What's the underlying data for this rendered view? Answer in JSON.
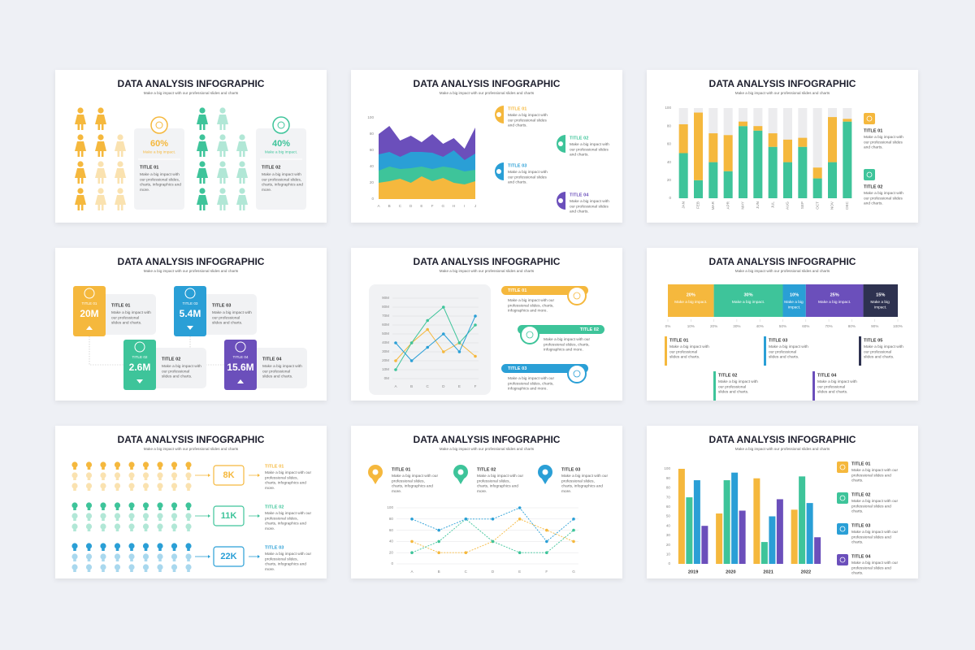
{
  "slides": [
    {
      "title": "DATA ANALYSIS INFOGRAPHIC",
      "subtitle": "Make a big impact with our professional slides and charts",
      "groups": [
        {
          "percent": "60%",
          "caption": "Make a big impact.",
          "heading": "TITLE 01",
          "text": "Make a big impact with our professional slides, charts, infographics and more.",
          "color": "#f5b83d"
        },
        {
          "percent": "40%",
          "caption": "Make a big impact.",
          "heading": "TITLE 02",
          "text": "Make a big impact with our professional slides, charts, infographics and more.",
          "color": "#3ec49a"
        }
      ]
    },
    {
      "title": "DATA ANALYSIS INFOGRAPHIC",
      "subtitle": "Make a big impact with our professional slides and charts",
      "steps": [
        {
          "tag": "TITLE 01",
          "value": "20M",
          "heading": "TITLE 01",
          "text": "Make a big impact with our professional slides and charts.",
          "color": "#f5b83d"
        },
        {
          "tag": "TITLE 02",
          "value": "2.6M",
          "heading": "TITLE 02",
          "text": "Make a big impact with our professional slides and charts.",
          "color": "#3ec49a"
        },
        {
          "tag": "TITLE 03",
          "value": "5.4M",
          "heading": "TITLE 03",
          "text": "Make a big impact with our professional slides and charts.",
          "color": "#2a9fd6"
        },
        {
          "tag": "TITLE 04",
          "value": "15.6M",
          "heading": "TITLE 04",
          "text": "Make a big impact with our professional slides and charts.",
          "color": "#6b4fbb"
        }
      ]
    },
    {
      "title": "DATA ANALYSIS INFOGRAPHIC",
      "subtitle": "Make a big impact with our professional slides and charts",
      "rows": [
        {
          "value": "8K",
          "heading": "TITLE 01",
          "text": "Make a big impact with our professional slides, charts, infographics and more.",
          "color": "#f5b83d"
        },
        {
          "value": "11K",
          "heading": "TITLE 02",
          "text": "Make a big impact with our professional slides, charts, infographics and more.",
          "color": "#3ec49a"
        },
        {
          "value": "22K",
          "heading": "TITLE 03",
          "text": "Make a big impact with our professional slides, charts, infographics and more.",
          "color": "#2a9fd6"
        }
      ]
    }
  ],
  "chart_data": [
    {
      "type": "area",
      "title": "DATA ANALYSIS INFOGRAPHIC",
      "subtitle": "Make a big impact with our professional slides and charts",
      "categories": [
        "A",
        "B",
        "C",
        "D",
        "E",
        "F",
        "G",
        "H",
        "I",
        "J"
      ],
      "ylim": [
        0,
        100
      ],
      "yticks": [
        0,
        20,
        40,
        60,
        80,
        100
      ],
      "series": [
        {
          "name": "TITLE 01",
          "color": "#f5b83d",
          "values": [
            20,
            22,
            25,
            20,
            28,
            22,
            26,
            20,
            18,
            22
          ],
          "description": "Make a big impact with our professional slides and charts."
        },
        {
          "name": "TITLE 02",
          "color": "#3ec49a",
          "values": [
            15,
            18,
            12,
            18,
            12,
            15,
            14,
            18,
            16,
            14
          ],
          "description": "Make a big impact with our professional slides and charts."
        },
        {
          "name": "TITLE 03",
          "color": "#2a9fd6",
          "values": [
            20,
            18,
            15,
            20,
            18,
            20,
            12,
            22,
            14,
            20
          ],
          "description": "Make a big impact with our professional slides and charts."
        },
        {
          "name": "TITLE 04",
          "color": "#6b4fbb",
          "values": [
            25,
            32,
            20,
            20,
            12,
            23,
            16,
            15,
            14,
            32
          ],
          "description": "Make a big impact with our professional slides and charts."
        }
      ]
    },
    {
      "type": "stacked_bar",
      "title": "DATA ANALYSIS INFOGRAPHIC",
      "subtitle": "Make a big impact with our professional slides and charts",
      "categories": [
        "JAN",
        "FEB",
        "MAR",
        "APR",
        "MAY",
        "JUN",
        "JUL",
        "AUG",
        "SEP",
        "OCT",
        "NOV",
        "DEC"
      ],
      "ylim": [
        0,
        100
      ],
      "yticks": [
        0,
        20,
        40,
        60,
        80,
        100
      ],
      "series": [
        {
          "name": "TITLE 01",
          "color": "#f5b83d",
          "values": [
            32,
            75,
            32,
            40,
            5,
            5,
            15,
            25,
            10,
            12,
            50,
            3
          ],
          "description": "Make a big impact with our professional slides and charts."
        },
        {
          "name": "TITLE 02",
          "color": "#3ec49a",
          "values": [
            50,
            20,
            40,
            30,
            80,
            75,
            57,
            40,
            57,
            22,
            40,
            85
          ],
          "description": "Make a big impact with our professional slides and charts."
        }
      ]
    },
    {
      "type": "line",
      "title": "DATA ANALYSIS INFOGRAPHIC",
      "subtitle": "Make a big impact with our professional slides and charts",
      "categories": [
        "A",
        "B",
        "C",
        "D",
        "E",
        "F"
      ],
      "ylim": [
        0,
        90
      ],
      "grid": true,
      "yticks": [
        {
          "value": 0,
          "label": "0M"
        },
        {
          "value": 10,
          "label": "10M"
        },
        {
          "value": 20,
          "label": "20M"
        },
        {
          "value": 30,
          "label": "30M"
        },
        {
          "value": 40,
          "label": "40M"
        },
        {
          "value": 50,
          "label": "50M"
        },
        {
          "value": 60,
          "label": "60M"
        },
        {
          "value": 70,
          "label": "70M"
        },
        {
          "value": 80,
          "label": "80M"
        },
        {
          "value": 90,
          "label": "90M"
        }
      ],
      "series": [
        {
          "name": "TITLE 01",
          "color": "#f5b83d",
          "values": [
            20,
            40,
            55,
            30,
            40,
            25
          ],
          "description": "Make a big impact with our professional slides, charts, infographics and more."
        },
        {
          "name": "TITLE 02",
          "color": "#3ec49a",
          "values": [
            10,
            40,
            65,
            80,
            40,
            60
          ],
          "description": "Make a big impact with our professional slides, charts, infographics and more."
        },
        {
          "name": "TITLE 03",
          "color": "#2a9fd6",
          "values": [
            40,
            20,
            35,
            50,
            30,
            70
          ],
          "description": "Make a big impact with our professional slides, charts, infographics and more."
        }
      ]
    },
    {
      "type": "stacked_bar_h",
      "title": "DATA ANALYSIS INFOGRAPHIC",
      "subtitle": "Make a big impact with our professional slides and charts",
      "xlim": [
        0,
        100
      ],
      "xticks": [
        {
          "value": 0,
          "label": "0%"
        },
        {
          "value": 10,
          "label": "10%"
        },
        {
          "value": 20,
          "label": "20%"
        },
        {
          "value": 30,
          "label": "30%"
        },
        {
          "value": 40,
          "label": "40%"
        },
        {
          "value": 50,
          "label": "50%"
        },
        {
          "value": 60,
          "label": "60%"
        },
        {
          "value": 70,
          "label": "70%"
        },
        {
          "value": 80,
          "label": "80%"
        },
        {
          "value": 90,
          "label": "90%"
        },
        {
          "value": 100,
          "label": "100%"
        }
      ],
      "series": [
        {
          "name": "TITLE 01",
          "color": "#f5b83d",
          "values": [
            20
          ],
          "value_labels": [
            "20%"
          ],
          "caption": "Make a big impact.",
          "description": "Make a big impact with our professional slides and charts."
        },
        {
          "name": "TITLE 02",
          "color": "#3ec49a",
          "values": [
            30
          ],
          "value_labels": [
            "30%"
          ],
          "caption": "Make a big impact.",
          "description": "Make a big impact with our professional slides and charts."
        },
        {
          "name": "TITLE 03",
          "color": "#2a9fd6",
          "values": [
            10
          ],
          "value_labels": [
            "10%"
          ],
          "caption": "Make a big impact.",
          "description": "Make a big impact with our professional slides and charts."
        },
        {
          "name": "TITLE 04",
          "color": "#6b4fbb",
          "values": [
            25
          ],
          "value_labels": [
            "25%"
          ],
          "caption": "Make a big impact.",
          "description": "Make a big impact with our professional slides and charts."
        },
        {
          "name": "TITLE 05",
          "color": "#2e3250",
          "values": [
            15
          ],
          "value_labels": [
            "15%"
          ],
          "caption": "Make a big impact.",
          "description": "Make a big impact with our professional slides and charts."
        }
      ]
    },
    {
      "type": "dotted_line",
      "title": "DATA ANALYSIS INFOGRAPHIC",
      "subtitle": "Make a big impact with our professional slides and charts",
      "categories": [
        "A",
        "B",
        "C",
        "D",
        "E",
        "F",
        "G"
      ],
      "ylim": [
        0,
        100
      ],
      "yticks": [
        0,
        20,
        40,
        60,
        80,
        100
      ],
      "grid": true,
      "series": [
        {
          "name": "TITLE 01",
          "color": "#f5b83d",
          "values": [
            40,
            20,
            20,
            40,
            80,
            60,
            40
          ],
          "description": "Make a big impact with our professional slides, charts, infographics and more."
        },
        {
          "name": "TITLE 02",
          "color": "#3ec49a",
          "values": [
            20,
            40,
            80,
            40,
            20,
            20,
            60
          ],
          "description": "Make a big impact with our professional slides, charts, infographics and more."
        },
        {
          "name": "TITLE 03",
          "color": "#2a9fd6",
          "values": [
            80,
            60,
            80,
            80,
            100,
            40,
            80
          ],
          "description": "Make a big impact with our professional slides, charts, infographics and more."
        }
      ]
    },
    {
      "type": "grouped_bar",
      "title": "DATA ANALYSIS INFOGRAPHIC",
      "subtitle": "Make a big impact with our professional slides and charts",
      "categories": [
        "2019",
        "2020",
        "2021",
        "2022"
      ],
      "ylim": [
        0,
        100
      ],
      "yticks": [
        0,
        10,
        20,
        30,
        40,
        50,
        60,
        70,
        80,
        90,
        100
      ],
      "series": [
        {
          "name": "TITLE 01",
          "color": "#f5b83d",
          "values": [
            100,
            53,
            90,
            57
          ],
          "description": "Make a big impact with our professional slides and charts."
        },
        {
          "name": "TITLE 02",
          "color": "#3ec49a",
          "values": [
            70,
            88,
            23,
            92
          ],
          "description": "Make a big impact with our professional slides and charts."
        },
        {
          "name": "TITLE 03",
          "color": "#2a9fd6",
          "values": [
            88,
            96,
            50,
            64
          ],
          "description": "Make a big impact with our professional slides and charts."
        },
        {
          "name": "TITLE 04",
          "color": "#6b4fbb",
          "values": [
            40,
            56,
            68,
            28
          ],
          "description": "Make a big impact with our professional slides and charts."
        }
      ]
    }
  ]
}
